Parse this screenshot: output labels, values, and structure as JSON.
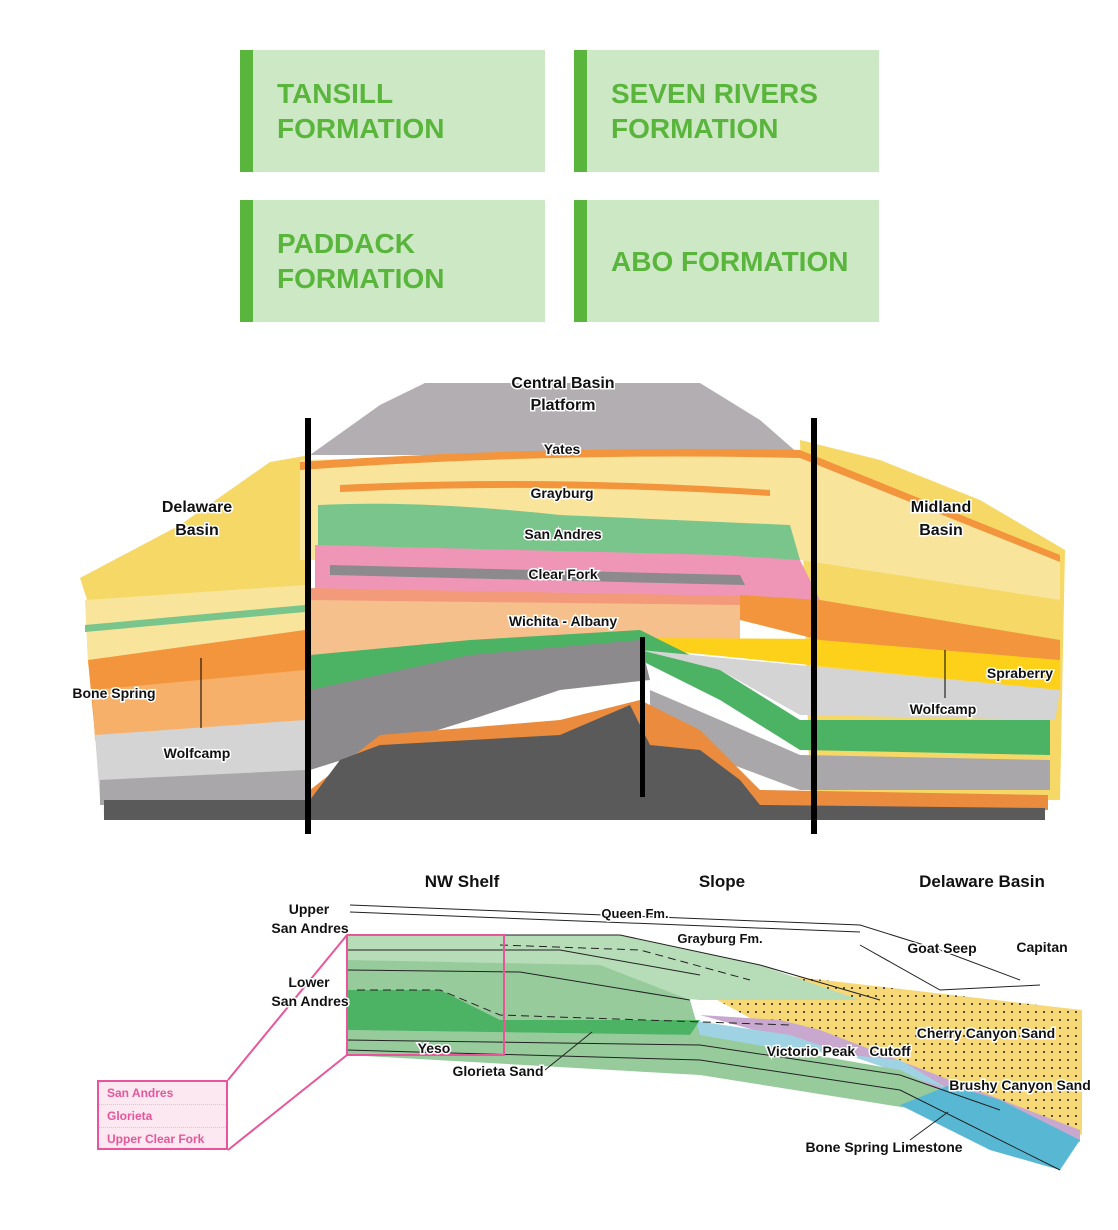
{
  "formations": [
    {
      "label": "TANSILL\nFORMATION"
    },
    {
      "label": "SEVEN RIVERS\nFORMATION"
    },
    {
      "label": "PADDACK\nFORMATION"
    },
    {
      "label": "ABO FORMATION"
    }
  ],
  "colors": {
    "box_bg": "#cde8c5",
    "box_accent": "#5ab53c",
    "highlight": "#e8559a"
  },
  "basin_section": {
    "labels": {
      "platform": [
        "Central Basin",
        "Platform"
      ],
      "delaware": [
        "Delaware",
        "Basin"
      ],
      "midland": [
        "Midland",
        "Basin"
      ],
      "yates": "Yates",
      "grayburg": "Grayburg",
      "san_andres": "San Andres",
      "clear_fork": "Clear Fork",
      "wichita": "Wichita - Albany",
      "bone_spring": "Bone Spring",
      "wolfcamp_left": "Wolfcamp",
      "spraberry": "Spraberry",
      "wolfcamp_right": "Wolfcamp"
    }
  },
  "shelf_section": {
    "headers": {
      "nw_shelf": "NW Shelf",
      "slope": "Slope",
      "delaware": "Delaware Basin"
    },
    "labels": {
      "upper_sa": [
        "Upper",
        "San Andres"
      ],
      "lower_sa": [
        "Lower",
        "San Andres"
      ],
      "queen": "Queen Fm.",
      "grayburg": "Grayburg Fm.",
      "goat_seep": "Goat Seep",
      "capitan": "Capitan",
      "cherry": "Cherry Canyon Sand",
      "victorio": "Victorio Peak",
      "cutoff": "Cutoff",
      "yeso": "Yeso",
      "glorieta": "Glorieta Sand",
      "brushy": "Brushy Canyon Sand",
      "bone_spring": "Bone Spring Limestone"
    },
    "legend": [
      "San Andres",
      "Glorieta",
      "Upper Clear Fork"
    ]
  }
}
